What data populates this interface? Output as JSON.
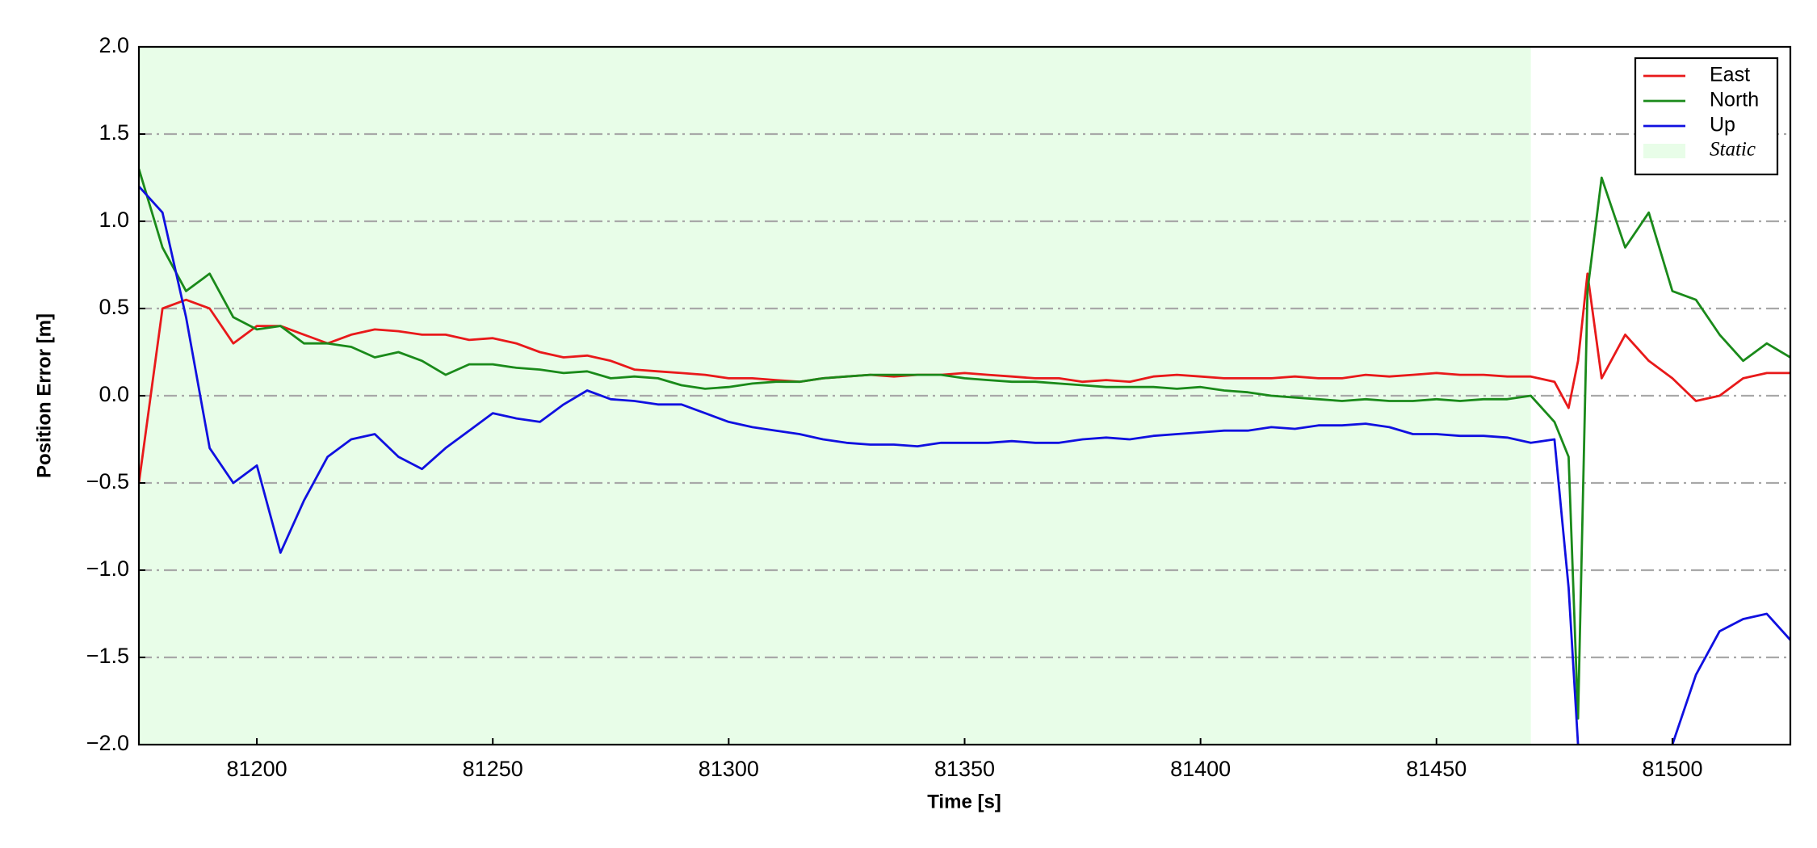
{
  "chart_data": {
    "type": "line",
    "xlabel": "Time [s]",
    "ylabel": "Position Error [m]",
    "xlim": [
      81175,
      81525
    ],
    "ylim": [
      -2.0,
      2.0
    ],
    "xticks": [
      81200,
      81250,
      81300,
      81350,
      81400,
      81450,
      81500
    ],
    "yticks": [
      {
        "value": -2.0,
        "label": "−2.0"
      },
      {
        "value": -1.5,
        "label": "−1.5"
      },
      {
        "value": -1.0,
        "label": "−1.0"
      },
      {
        "value": -0.5,
        "label": "−0.5"
      },
      {
        "value": 0.0,
        "label": "0.0"
      },
      {
        "value": 0.5,
        "label": "0.5"
      },
      {
        "value": 1.0,
        "label": "1.0"
      },
      {
        "value": 1.5,
        "label": "1.5"
      },
      {
        "value": 2.0,
        "label": "2.0"
      }
    ],
    "grid": true,
    "legend": "upper right",
    "shaded_regions": [
      {
        "name": "Static",
        "x": [
          81175,
          81470
        ],
        "color": "#e8fde8"
      }
    ],
    "x": [
      81175,
      81180,
      81185,
      81190,
      81195,
      81200,
      81205,
      81210,
      81215,
      81220,
      81225,
      81230,
      81235,
      81240,
      81245,
      81250,
      81255,
      81260,
      81265,
      81270,
      81275,
      81280,
      81285,
      81290,
      81295,
      81300,
      81305,
      81310,
      81315,
      81320,
      81325,
      81330,
      81335,
      81340,
      81345,
      81350,
      81355,
      81360,
      81365,
      81370,
      81375,
      81380,
      81385,
      81390,
      81395,
      81400,
      81405,
      81410,
      81415,
      81420,
      81425,
      81430,
      81435,
      81440,
      81445,
      81450,
      81455,
      81460,
      81465,
      81470,
      81475,
      81478,
      81480,
      81482,
      81485,
      81490,
      81495,
      81500,
      81505,
      81510,
      81515,
      81520,
      81525
    ],
    "series": [
      {
        "name": "East",
        "color": "#e8191a",
        "values": [
          -0.5,
          0.5,
          0.55,
          0.5,
          0.3,
          0.4,
          0.4,
          0.35,
          0.3,
          0.35,
          0.38,
          0.37,
          0.35,
          0.35,
          0.32,
          0.33,
          0.3,
          0.25,
          0.22,
          0.23,
          0.2,
          0.15,
          0.14,
          0.13,
          0.12,
          0.1,
          0.1,
          0.09,
          0.08,
          0.1,
          0.11,
          0.12,
          0.11,
          0.12,
          0.12,
          0.13,
          0.12,
          0.11,
          0.1,
          0.1,
          0.08,
          0.09,
          0.08,
          0.11,
          0.12,
          0.11,
          0.1,
          0.1,
          0.1,
          0.11,
          0.1,
          0.1,
          0.12,
          0.11,
          0.12,
          0.13,
          0.12,
          0.12,
          0.11,
          0.11,
          0.08,
          -0.07,
          0.2,
          0.7,
          0.1,
          0.35,
          0.2,
          0.1,
          -0.03,
          0.0,
          0.1,
          0.13,
          0.13
        ]
      },
      {
        "name": "North",
        "color": "#1a8a1a",
        "values": [
          1.3,
          0.85,
          0.6,
          0.7,
          0.45,
          0.38,
          0.4,
          0.3,
          0.3,
          0.28,
          0.22,
          0.25,
          0.2,
          0.12,
          0.18,
          0.18,
          0.16,
          0.15,
          0.13,
          0.14,
          0.1,
          0.11,
          0.1,
          0.06,
          0.04,
          0.05,
          0.07,
          0.08,
          0.08,
          0.1,
          0.11,
          0.12,
          0.12,
          0.12,
          0.12,
          0.1,
          0.09,
          0.08,
          0.08,
          0.07,
          0.06,
          0.05,
          0.05,
          0.05,
          0.04,
          0.05,
          0.03,
          0.02,
          0.0,
          -0.01,
          -0.02,
          -0.03,
          -0.02,
          -0.03,
          -0.03,
          -0.02,
          -0.03,
          -0.02,
          -0.02,
          0.0,
          -0.15,
          -0.35,
          -1.85,
          0.6,
          1.25,
          0.85,
          1.05,
          0.6,
          0.55,
          0.35,
          0.2,
          0.3,
          0.22
        ]
      },
      {
        "name": "Up",
        "color": "#1010e0",
        "values": [
          1.2,
          1.05,
          0.45,
          -0.3,
          -0.5,
          -0.4,
          -0.9,
          -0.6,
          -0.35,
          -0.25,
          -0.22,
          -0.35,
          -0.42,
          -0.3,
          -0.2,
          -0.1,
          -0.13,
          -0.15,
          -0.05,
          0.03,
          -0.02,
          -0.03,
          -0.05,
          -0.05,
          -0.1,
          -0.15,
          -0.18,
          -0.2,
          -0.22,
          -0.25,
          -0.27,
          -0.28,
          -0.28,
          -0.29,
          -0.27,
          -0.27,
          -0.27,
          -0.26,
          -0.27,
          -0.27,
          -0.25,
          -0.24,
          -0.25,
          -0.23,
          -0.22,
          -0.21,
          -0.2,
          -0.2,
          -0.18,
          -0.19,
          -0.17,
          -0.17,
          -0.16,
          -0.18,
          -0.22,
          -0.22,
          -0.23,
          -0.23,
          -0.24,
          -0.27,
          -0.25,
          -1.1,
          -2.0,
          null,
          null,
          null,
          null,
          -2.0,
          -1.6,
          -1.35,
          -1.28,
          -1.25,
          -1.4
        ]
      }
    ]
  }
}
